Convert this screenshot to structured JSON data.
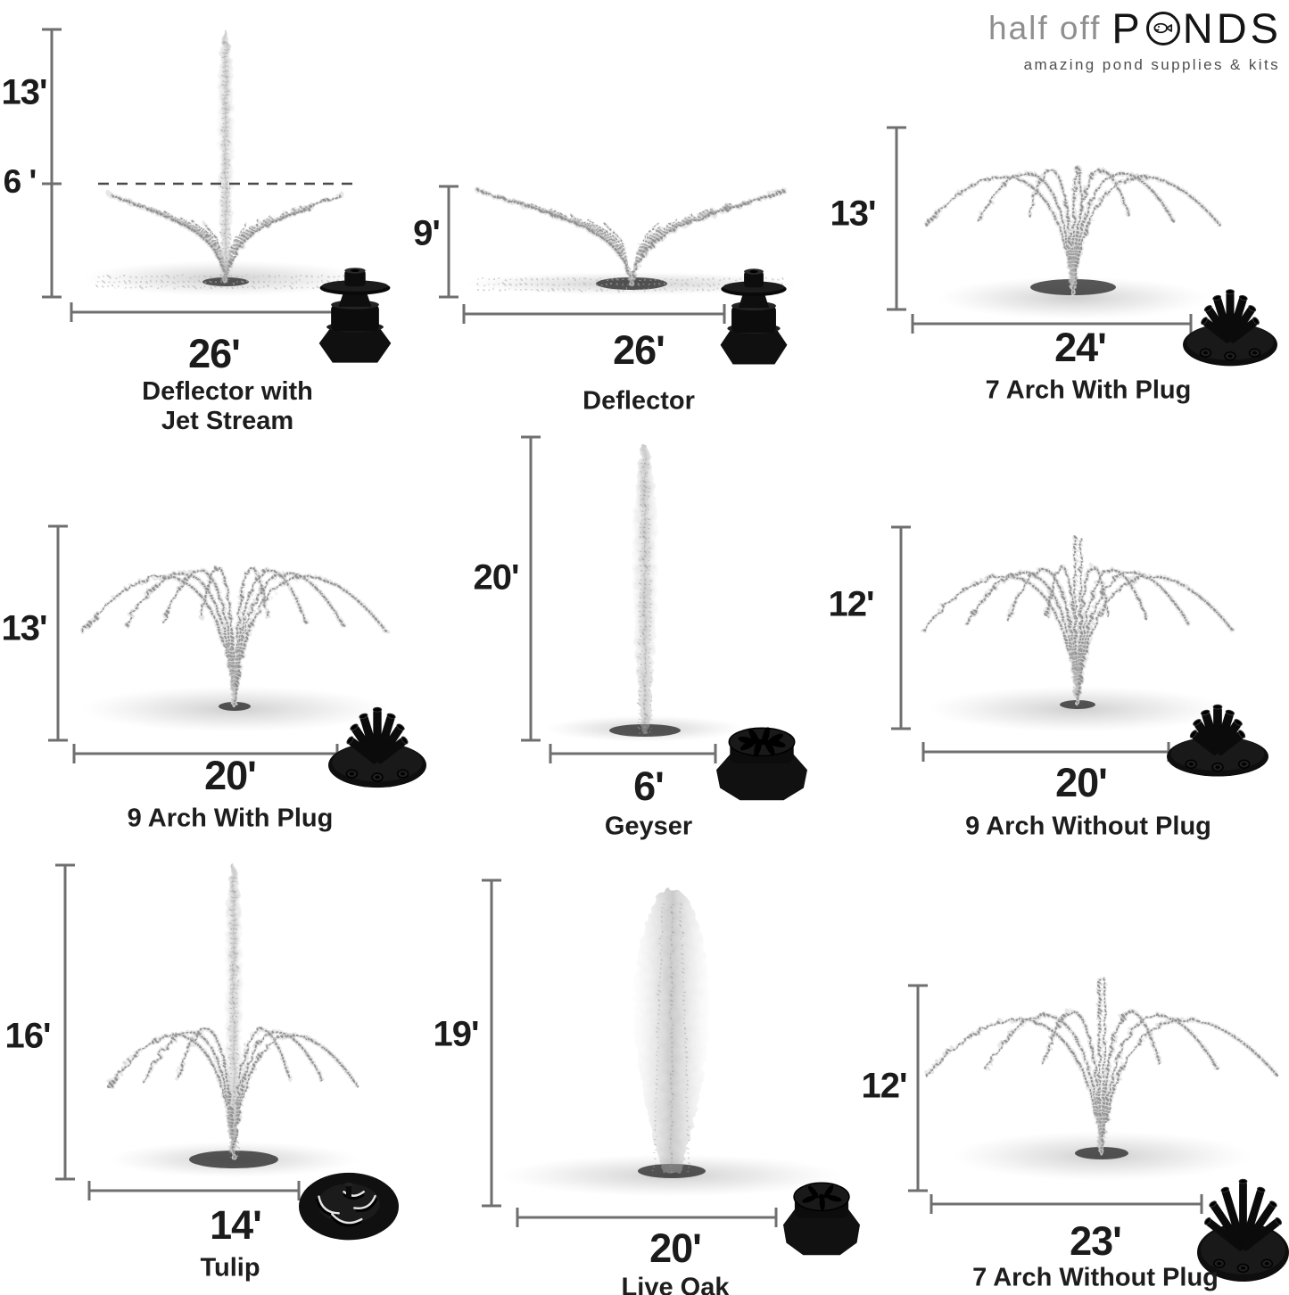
{
  "brand": {
    "name_prefix": "half off",
    "name_p": "P",
    "name_rest": "NDS",
    "tagline": "amazing pond supplies & kits"
  },
  "cells": [
    {
      "name": "Deflector with Jet Stream",
      "name_lines": [
        "Deflector with",
        "Jet Stream"
      ],
      "height": "13'",
      "jet_height": "6 '",
      "width": "26'",
      "pattern": "jetfan",
      "nozzle": "deflector"
    },
    {
      "name": "Deflector",
      "name_lines": [
        "Deflector"
      ],
      "height": "9'",
      "width": "26'",
      "pattern": "fan",
      "nozzle": "deflector"
    },
    {
      "name": "7 Arch With Plug",
      "name_lines": [
        "7 Arch With Plug"
      ],
      "height": "13'",
      "width": "24'",
      "pattern": "arcs",
      "nozzle": "multi-tube"
    },
    {
      "name": "9 Arch With Plug",
      "name_lines": [
        "9 Arch With Plug"
      ],
      "height": "13'",
      "width": "20'",
      "pattern": "arcs",
      "nozzle": "multi-tube"
    },
    {
      "name": "Geyser",
      "name_lines": [
        "Geyser"
      ],
      "height": "20'",
      "width": "6'",
      "pattern": "column",
      "nozzle": "slotted-dome"
    },
    {
      "name": "9 Arch Without Plug",
      "name_lines": [
        "9 Arch Without Plug"
      ],
      "height": "12'",
      "width": "20'",
      "pattern": "arcs",
      "nozzle": "multi-tube"
    },
    {
      "name": "Tulip",
      "name_lines": [
        "Tulip"
      ],
      "height": "16'",
      "width": "14'",
      "pattern": "tulip",
      "nozzle": "slotted-disc"
    },
    {
      "name": "Live Oak",
      "name_lines": [
        "Live Oak"
      ],
      "height": "19'",
      "width": "20'",
      "pattern": "plume",
      "nozzle": "slotted-dome"
    },
    {
      "name": "7 Arch Without Plug",
      "name_lines": [
        "7 Arch Without Plug"
      ],
      "height": "12'",
      "width": "23'",
      "pattern": "arcs",
      "nozzle": "multi-tube"
    }
  ],
  "colors": {
    "measure_line": "#6f6f6f",
    "dashed_line": "#4a4a4a",
    "label_text": "#1b1b1b",
    "spray": "#8d8d8d",
    "logo_gray": "#8f8f8f",
    "logo_black": "#141414",
    "tagline_gray": "#4f4f4f"
  }
}
